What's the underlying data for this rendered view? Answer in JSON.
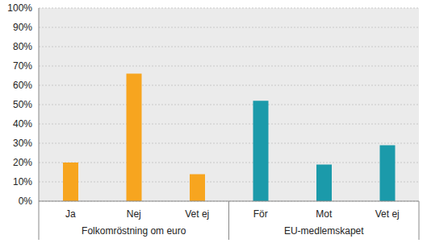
{
  "chart_data": {
    "type": "bar",
    "groups": [
      {
        "name": "Folkomröstning om euro",
        "categories": [
          "Ja",
          "Nej",
          "Vet ej"
        ],
        "values": [
          20,
          66,
          14
        ],
        "color": "#f7a51f"
      },
      {
        "name": "EU-medlemskapet",
        "categories": [
          "För",
          "Mot",
          "Vet ej"
        ],
        "values": [
          52,
          19,
          29
        ],
        "color": "#1b9aaa"
      }
    ],
    "ylim": [
      0,
      100
    ],
    "yticks": [
      {
        "value": 0,
        "label": "0%"
      },
      {
        "value": 10,
        "label": "10%"
      },
      {
        "value": 20,
        "label": "20%"
      },
      {
        "value": 30,
        "label": "30%"
      },
      {
        "value": 40,
        "label": "40%"
      },
      {
        "value": 50,
        "label": "50%"
      },
      {
        "value": 60,
        "label": "60%"
      },
      {
        "value": 70,
        "label": "70%"
      },
      {
        "value": 80,
        "label": "80%"
      },
      {
        "value": 90,
        "label": "90%"
      },
      {
        "value": 100,
        "label": "100%"
      }
    ],
    "grid": true
  }
}
